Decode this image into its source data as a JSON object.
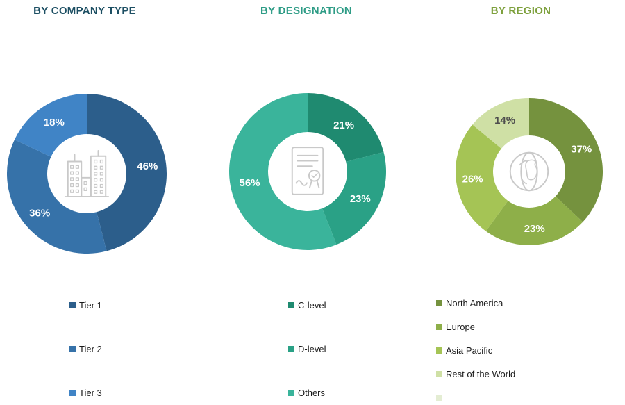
{
  "page": {
    "background": "#ffffff"
  },
  "chart_data": [
    {
      "name": "company-type",
      "type": "donut",
      "title": "BY COMPANY TYPE",
      "title_color": "#1d4f63",
      "center_icon": "buildings-icon",
      "legend_position": "bottom-left",
      "segments": [
        {
          "label": "Tier 1",
          "value": 46,
          "color": "#2c5e8b",
          "text_color": "#ffffff"
        },
        {
          "label": "Tier 2",
          "value": 36,
          "color": "#3672a9",
          "text_color": "#ffffff"
        },
        {
          "label": "Tier 3",
          "value": 18,
          "color": "#4084c6",
          "text_color": "#ffffff"
        }
      ]
    },
    {
      "name": "designation",
      "type": "donut",
      "title": "BY DESIGNATION",
      "title_color": "#2e9c86",
      "center_icon": "certificate-icon",
      "legend_position": "bottom-left",
      "segments": [
        {
          "label": "C-level",
          "value": 21,
          "color": "#1f8a70",
          "text_color": "#ffffff"
        },
        {
          "label": "D-level",
          "value": 23,
          "color": "#2aa186",
          "text_color": "#ffffff"
        },
        {
          "label": "Others",
          "value": 56,
          "color": "#3ab49b",
          "text_color": "#ffffff"
        }
      ]
    },
    {
      "name": "region",
      "type": "donut",
      "title": "BY REGION",
      "title_color": "#7da03c",
      "center_icon": "globe-icon",
      "legend_position": "bottom-left",
      "segments": [
        {
          "label": "North America",
          "value": 37,
          "color": "#75923e",
          "text_color": "#ffffff"
        },
        {
          "label": "Europe",
          "value": 23,
          "color": "#8eaf49",
          "text_color": "#ffffff"
        },
        {
          "label": "Asia Pacific",
          "value": 26,
          "color": "#a5c455",
          "text_color": "#ffffff"
        },
        {
          "label": "Rest of the World",
          "value": 14,
          "color": "#cfe0a5",
          "text_color": "#4d4d4d"
        }
      ],
      "legend_extra_swatch_color": "#e4edd3"
    }
  ]
}
